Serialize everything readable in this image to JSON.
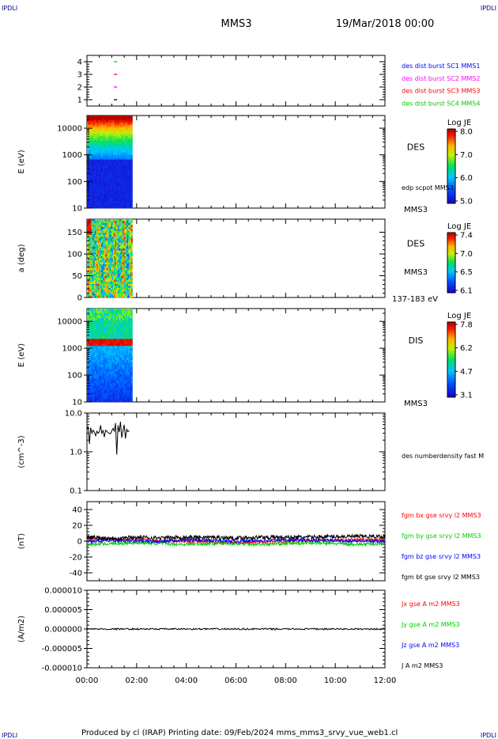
{
  "header": {
    "corner_tl": "IPDLI",
    "corner_tr": "IPDLI",
    "corner_bl": "IPDLI",
    "corner_br": "IPDLI",
    "spacecraft": "MMS3",
    "date": "19/Mar/2018 00:00"
  },
  "footer": {
    "credit": "Produced by cl (IRAP)   Printing date: 09/Feb/2024   mms_mms3_srvy_vue_web1.cl"
  },
  "colors": {
    "blue": "#0000ff",
    "magenta": "#ff00ff",
    "red": "#ff0000",
    "green": "#00cc00",
    "black": "#000000"
  },
  "chart_data": [
    {
      "type": "scatter",
      "id": "burst",
      "yticks": [
        "1",
        "2",
        "3",
        "4"
      ],
      "ylim": [
        0.5,
        4.5
      ],
      "legend": [
        {
          "label": "des dist burst SC1 MMS1",
          "color": "#0000ff"
        },
        {
          "label": "des dist burst SC2 MMS2",
          "color": "#ff00ff"
        },
        {
          "label": "des dist burst SC3 MMS3",
          "color": "#ff0000"
        },
        {
          "label": "des dist burst SC4 MMS4",
          "color": "#00cc00"
        }
      ],
      "points": [
        {
          "t": 1.15,
          "y": 4,
          "color": "#00cc00"
        },
        {
          "t": 1.15,
          "y": 3,
          "color": "#ff0000"
        },
        {
          "t": 1.15,
          "y": 2,
          "color": "#ff00ff"
        },
        {
          "t": 1.15,
          "y": 1,
          "color": "#000000"
        }
      ]
    },
    {
      "type": "heatmap",
      "id": "des-energy",
      "ylabel": "E (eV)",
      "yscale": "log",
      "ylim": [
        10,
        30000
      ],
      "yticks": [
        "10",
        "100",
        "1000",
        "10000"
      ],
      "side_label": "DES",
      "side_label2": "edp scpot MMS3",
      "sc_label": "MMS3",
      "colorbar": {
        "title": "Log JE",
        "min": 5.0,
        "max": 8.1,
        "ticks": [
          "8.0",
          "7.0",
          "6.0",
          "5.0"
        ]
      },
      "data_time_range": [
        "00:00",
        "01:45"
      ]
    },
    {
      "type": "heatmap",
      "id": "des-pitch",
      "ylabel": "a (deg)",
      "ylim": [
        0,
        180
      ],
      "yticks": [
        "0",
        "50",
        "100",
        "150"
      ],
      "side_label": "DES",
      "sc_label": "MMS3",
      "energy_label": "137-183 eV",
      "colorbar": {
        "title": "Log JE",
        "min": 6.1,
        "max": 7.5,
        "ticks": [
          "7.4",
          "7.0",
          "6.5",
          "6.1"
        ]
      },
      "data_time_range": [
        "00:00",
        "01:45"
      ]
    },
    {
      "type": "heatmap",
      "id": "dis-energy",
      "ylabel": "E (eV)",
      "yscale": "log",
      "ylim": [
        10,
        30000
      ],
      "yticks": [
        "10",
        "100",
        "1000",
        "10000"
      ],
      "side_label": "DIS",
      "sc_label": "MMS3",
      "colorbar": {
        "title": "Log JE",
        "min": 3.1,
        "max": 8.0,
        "ticks": [
          "7.8",
          "6.2",
          "4.7",
          "3.1"
        ]
      },
      "data_time_range": [
        "00:00",
        "01:45"
      ]
    },
    {
      "type": "line",
      "id": "density",
      "ylabel": "(cm^-3)",
      "yscale": "log",
      "ylim": [
        0.1,
        10
      ],
      "yticks": [
        "0.1",
        "1.0",
        "10.0"
      ],
      "legend": [
        {
          "label": "des numberdensity fast M",
          "color": "#000000"
        }
      ],
      "series": [
        {
          "color": "#000000",
          "t": [
            0.0,
            0.05,
            0.1,
            0.15,
            0.2,
            0.25,
            0.3,
            0.35,
            0.4,
            0.45,
            0.5,
            0.55,
            0.6,
            0.65,
            0.7,
            0.75,
            0.8,
            0.85,
            0.9,
            0.95,
            1.0,
            1.05,
            1.1,
            1.15,
            1.2,
            1.25,
            1.3,
            1.35,
            1.4,
            1.45,
            1.5,
            1.55,
            1.6,
            1.65,
            1.7
          ],
          "values": [
            3.8,
            4.5,
            1.6,
            4.2,
            3.0,
            3.6,
            3.2,
            2.6,
            3.4,
            3.0,
            3.3,
            4.8,
            3.0,
            3.5,
            2.4,
            3.6,
            3.4,
            3.1,
            3.0,
            2.9,
            3.5,
            4.0,
            3.4,
            5.5,
            0.85,
            4.8,
            3.2,
            6.0,
            2.3,
            3.5,
            5.0,
            2.2,
            3.8,
            3.3,
            3.5
          ]
        }
      ]
    },
    {
      "type": "line",
      "id": "fgm",
      "ylabel": "(nT)",
      "ylim": [
        -50,
        50
      ],
      "yticks": [
        "-40",
        "-20",
        "0",
        "20",
        "40"
      ],
      "legend": [
        {
          "label": "fgm bx gse srvy l2 MMS3",
          "color": "#ff0000"
        },
        {
          "label": "fgm by gse srvy l2 MMS3",
          "color": "#00cc00"
        },
        {
          "label": "fgm bz gse srvy l2 MMS3",
          "color": "#0000ff"
        },
        {
          "label": "fgm bt gse srvy l2 MMS3",
          "color": "#000000"
        }
      ],
      "series": [
        {
          "name": "fgm bx gse srvy l2 MMS3",
          "color": "#ff0000",
          "t": [
            0,
            1,
            2,
            3,
            4,
            5,
            6,
            7,
            8,
            9,
            10,
            11,
            12
          ],
          "values": [
            3,
            2,
            2,
            1,
            0,
            -1,
            -2,
            -1,
            0,
            1,
            1,
            2,
            2
          ]
        },
        {
          "name": "fgm by gse srvy l2 MMS3",
          "color": "#00cc00",
          "t": [
            0,
            1,
            2,
            3,
            4,
            5,
            6,
            7,
            8,
            9,
            10,
            11,
            12
          ],
          "values": [
            -4,
            -3,
            -2,
            -3,
            -4,
            -3,
            -3,
            -4,
            -3,
            -2,
            -3,
            -4,
            -3
          ]
        },
        {
          "name": "fgm bz gse srvy l2 MMS3",
          "color": "#0000ff",
          "t": [
            0,
            1,
            2,
            3,
            4,
            5,
            6,
            7,
            8,
            9,
            10,
            11,
            12
          ],
          "values": [
            0,
            1,
            0,
            -1,
            2,
            1,
            0,
            1,
            2,
            1,
            1,
            0,
            0
          ]
        },
        {
          "name": "fgm bt gse srvy l2 MMS3",
          "color": "#000000",
          "t": [
            0,
            1,
            2,
            3,
            4,
            5,
            6,
            7,
            8,
            9,
            10,
            11,
            12
          ],
          "values": [
            5,
            4,
            5,
            4,
            5,
            5,
            4,
            5,
            5,
            5,
            6,
            6,
            6
          ]
        }
      ]
    },
    {
      "type": "line",
      "id": "current",
      "ylabel": "(A/m2)",
      "ylim": [
        -1e-05,
        1e-05
      ],
      "yticks": [
        "-0.000010",
        "-0.000005",
        "0.000000",
        "0.000005",
        "0.000010"
      ],
      "legend": [
        {
          "label": "Jx gse A m2 MMS3",
          "color": "#ff0000"
        },
        {
          "label": "Jy gse A m2 MMS3",
          "color": "#00cc00"
        },
        {
          "label": "Jz gse A m2 MMS3",
          "color": "#0000ff"
        },
        {
          "label": "J A m2 MMS3",
          "color": "#000000"
        }
      ],
      "series": [
        {
          "name": "J A m2 MMS3",
          "color": "#000000",
          "t": [
            0,
            1,
            2,
            3,
            4,
            5,
            6,
            7,
            8,
            9,
            10,
            11,
            12
          ],
          "values": [
            0,
            0,
            0,
            0,
            0,
            0,
            0,
            0,
            0,
            0,
            0,
            0,
            0
          ]
        }
      ]
    }
  ],
  "time_axis": {
    "ticks": [
      "00:00",
      "02:00",
      "04:00",
      "06:00",
      "08:00",
      "10:00",
      "12:00"
    ],
    "range_hours": [
      0,
      12
    ]
  }
}
